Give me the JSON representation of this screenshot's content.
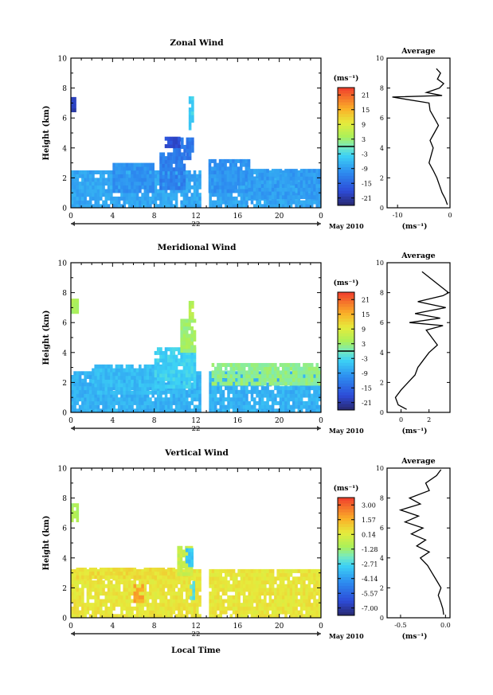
{
  "chart_data": [
    {
      "type": "heatmap",
      "title": "Zonal Wind",
      "ylabel": "Height (km)",
      "ylim": [
        0,
        10
      ],
      "x_ticks": [
        "0",
        "4",
        "8",
        "12",
        "16",
        "20",
        "0"
      ],
      "y_ticks": [
        "0",
        "2",
        "4",
        "6",
        "8",
        "10"
      ],
      "date_label": "22",
      "month_label": "May 2010",
      "colorbar": {
        "unit": "(ms⁻¹)",
        "ticks": [
          "21",
          "15",
          "9",
          "3",
          "-3",
          "-9",
          "-15",
          "-21"
        ],
        "vmin": -24,
        "vmax": 24,
        "contour_at": 0
      },
      "wind_regions": [
        {
          "t0": 0,
          "t1": 24,
          "z0": 0.0,
          "z1": 2.4,
          "value": -8
        },
        {
          "t0": 4,
          "t1": 8,
          "z0": 1.0,
          "z1": 2.8,
          "value": -10
        },
        {
          "t0": 8.5,
          "t1": 11,
          "z0": 1.2,
          "z1": 3.6,
          "value": -12
        },
        {
          "t0": 9.8,
          "t1": 11.8,
          "z0": 3.2,
          "z1": 4.6,
          "value": -13
        },
        {
          "t0": 13.2,
          "t1": 17,
          "z0": 1.0,
          "z1": 3.2,
          "value": -10
        },
        {
          "t0": 17,
          "t1": 24,
          "z0": 0.6,
          "z1": 2.6,
          "value": -9
        },
        {
          "t0": 0,
          "t1": 0.5,
          "z0": 6.4,
          "z1": 7.4,
          "value": -20
        },
        {
          "t0": 9,
          "t1": 10.4,
          "z0": 4.0,
          "z1": 4.6,
          "value": -18
        },
        {
          "t0": 11.3,
          "t1": 11.8,
          "z0": 5.2,
          "z1": 7.3,
          "value": -4
        }
      ],
      "inset": {
        "title": "Average",
        "xlabel": "(ms⁻¹)",
        "x_ticks": [
          "-10",
          "0"
        ],
        "xlim": [
          -12,
          0
        ],
        "y_ticks": [
          "0",
          "2",
          "4",
          "6",
          "8",
          "10"
        ],
        "profile_z": [
          0.2,
          0.6,
          1.0,
          1.5,
          2.0,
          2.5,
          3.0,
          3.5,
          4.0,
          4.5,
          5.0,
          5.5,
          6.0,
          6.5,
          7.0,
          7.4,
          7.5,
          7.7,
          8.0,
          8.3,
          8.6,
          9.0,
          9.3
        ],
        "profile_v": [
          -0.5,
          -0.9,
          -1.5,
          -2.0,
          -2.5,
          -3.2,
          -4.0,
          -3.6,
          -3.2,
          -3.8,
          -3.0,
          -2.2,
          -3.0,
          -3.8,
          -4.0,
          -11.0,
          -1.5,
          -4.5,
          -2.0,
          -1.2,
          -2.4,
          -1.8,
          -2.6
        ]
      }
    },
    {
      "type": "heatmap",
      "title": "Meridional Wind",
      "ylabel": "Height (km)",
      "ylim": [
        0,
        10
      ],
      "x_ticks": [
        "0",
        "4",
        "8",
        "12",
        "16",
        "20",
        "0"
      ],
      "y_ticks": [
        "0",
        "2",
        "4",
        "6",
        "8",
        "10"
      ],
      "date_label": "22",
      "month_label": "May 2010",
      "colorbar": {
        "unit": "(ms⁻¹)",
        "ticks": [
          "21",
          "15",
          "9",
          "3",
          "-3",
          "-9",
          "-15",
          "-21"
        ],
        "vmin": -24,
        "vmax": 24,
        "contour_at": 0
      },
      "wind_regions": [
        {
          "t0": 0,
          "t1": 24,
          "z0": 0.0,
          "z1": 2.6,
          "value": -7
        },
        {
          "t0": 2,
          "t1": 9,
          "z0": 1.2,
          "z1": 3.0,
          "value": -6
        },
        {
          "t0": 8,
          "t1": 12,
          "z0": 1.6,
          "z1": 4.2,
          "value": -4
        },
        {
          "t0": 10.5,
          "t1": 12,
          "z0": 4.0,
          "z1": 6.2,
          "value": 3
        },
        {
          "t0": 13.5,
          "t1": 24,
          "z0": 1.8,
          "z1": 3.2,
          "value": 2
        },
        {
          "t0": 0,
          "t1": 0.6,
          "z0": 6.6,
          "z1": 7.4,
          "value": 4
        },
        {
          "t0": 11.3,
          "t1": 11.8,
          "z0": 6.2,
          "z1": 7.4,
          "value": 5
        }
      ],
      "inset": {
        "title": "Average",
        "xlabel": "(ms⁻¹)",
        "x_ticks": [
          "0",
          "2"
        ],
        "xlim": [
          -1,
          3.5
        ],
        "y_ticks": [
          "0",
          "2",
          "4",
          "6",
          "8",
          "10"
        ],
        "profile_z": [
          0.2,
          0.5,
          1.0,
          1.5,
          2.0,
          2.5,
          3.0,
          3.5,
          4.0,
          4.5,
          5.0,
          5.5,
          5.8,
          6.0,
          6.3,
          6.6,
          7.0,
          7.4,
          7.8,
          8.0,
          9.4
        ],
        "profile_v": [
          0.4,
          -0.2,
          -0.4,
          0.0,
          0.5,
          1.0,
          1.2,
          1.6,
          2.0,
          2.6,
          2.2,
          1.8,
          3.0,
          0.6,
          2.8,
          1.0,
          3.2,
          1.2,
          3.0,
          3.4,
          1.5
        ]
      }
    },
    {
      "type": "heatmap",
      "title": "Vertical Wind",
      "ylabel": "Height (km)",
      "xlabel": "Local Time",
      "ylim": [
        0,
        10
      ],
      "x_ticks": [
        "0",
        "4",
        "8",
        "12",
        "16",
        "20",
        "0"
      ],
      "y_ticks": [
        "0",
        "2",
        "4",
        "6",
        "8",
        "10"
      ],
      "date_label": "22",
      "month_label": "May 2010",
      "colorbar": {
        "unit": "(ms⁻¹)",
        "ticks": [
          "3.00",
          "1.57",
          "0.14",
          "-1.28",
          "-2.71",
          "-4.14",
          "-5.57",
          "-7.00"
        ],
        "vmin": -7.71,
        "vmax": 3.71
      },
      "wind_regions": [
        {
          "t0": 0,
          "t1": 24,
          "z0": 0.0,
          "z1": 3.1,
          "value": 0.4
        },
        {
          "t0": 0.5,
          "t1": 10,
          "z0": 2.6,
          "z1": 3.2,
          "value": 0.6
        },
        {
          "t0": 6.0,
          "t1": 7.0,
          "z0": 1.0,
          "z1": 2.2,
          "value": 1.8
        },
        {
          "t0": 10.2,
          "t1": 11.5,
          "z0": 2.8,
          "z1": 4.8,
          "value": -0.4
        },
        {
          "t0": 11.0,
          "t1": 11.6,
          "z0": 3.4,
          "z1": 4.6,
          "value": -3.2
        },
        {
          "t0": 11.4,
          "t1": 11.9,
          "z0": 1.2,
          "z1": 2.4,
          "value": -2.4
        },
        {
          "t0": 0,
          "t1": 0.6,
          "z0": 6.4,
          "z1": 7.6,
          "value": -1.0
        }
      ],
      "inset": {
        "title": "Average",
        "xlabel": "(ms⁻¹)",
        "x_ticks": [
          "-0.5",
          "0.0"
        ],
        "xlim": [
          -0.65,
          0.05
        ],
        "y_ticks": [
          "0",
          "2",
          "4",
          "6",
          "8",
          "10"
        ],
        "profile_z": [
          0.2,
          0.6,
          1.0,
          1.5,
          2.0,
          2.5,
          3.0,
          3.5,
          4.0,
          4.4,
          4.8,
          5.2,
          5.6,
          6.0,
          6.4,
          6.8,
          7.2,
          7.6,
          8.0,
          8.5,
          9.0,
          9.5,
          9.9
        ],
        "profile_v": [
          -0.02,
          -0.03,
          -0.05,
          -0.08,
          -0.05,
          -0.1,
          -0.15,
          -0.2,
          -0.28,
          -0.18,
          -0.32,
          -0.22,
          -0.38,
          -0.25,
          -0.45,
          -0.3,
          -0.5,
          -0.28,
          -0.4,
          -0.18,
          -0.22,
          -0.1,
          -0.05
        ]
      }
    }
  ]
}
